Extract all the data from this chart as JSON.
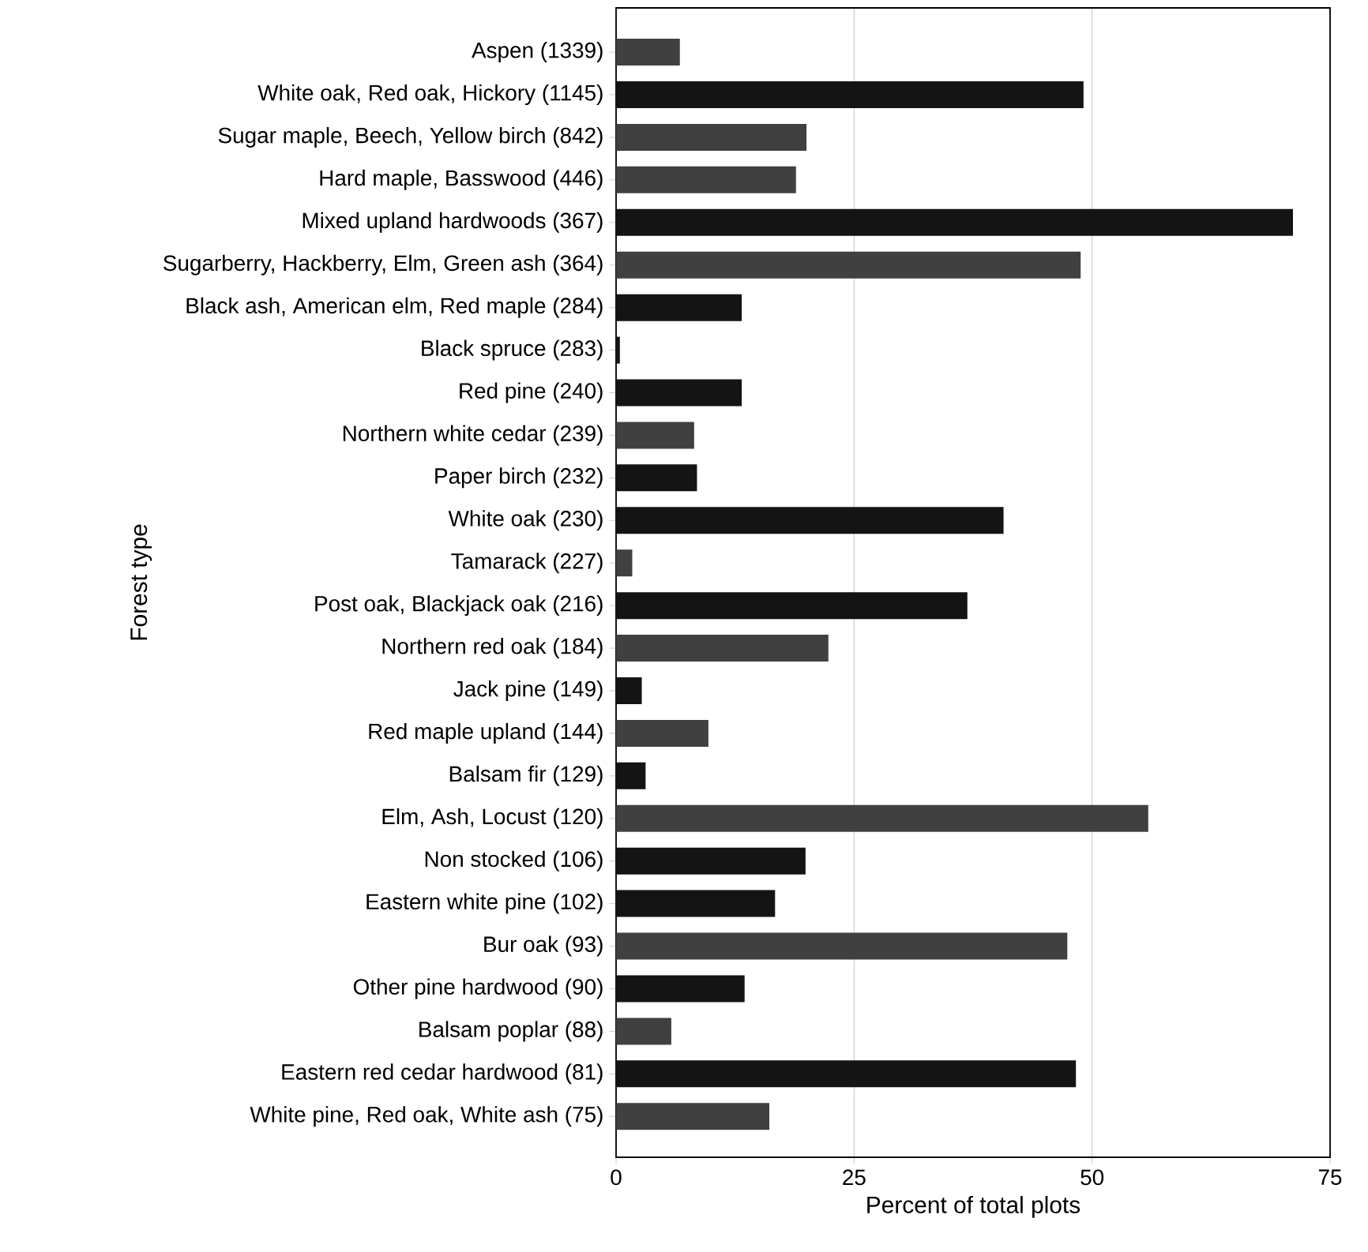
{
  "chart_data": {
    "type": "bar",
    "orientation": "horizontal",
    "xlabel": "Percent of total plots",
    "ylabel": "Forest type",
    "categories": [
      "Aspen (1339)",
      "White oak, Red oak, Hickory (1145)",
      "Sugar maple, Beech, Yellow birch (842)",
      "Hard maple, Basswood (446)",
      "Mixed upland hardwoods (367)",
      "Sugarberry, Hackberry, Elm, Green ash (364)",
      "Black ash, American elm, Red maple (284)",
      "Black spruce (283)",
      "Red pine (240)",
      "Northern white cedar (239)",
      "Paper birch (232)",
      "White oak (230)",
      "Tamarack (227)",
      "Post oak, Blackjack oak (216)",
      "Northern red oak (184)",
      "Jack pine (149)",
      "Red maple upland (144)",
      "Balsam fir (129)",
      "Elm, Ash, Locust (120)",
      "Non stocked (106)",
      "Eastern white pine (102)",
      "Bur oak (93)",
      "Other pine hardwood (90)",
      "Balsam poplar (88)",
      "Eastern red cedar hardwood (81)",
      "White pine, Red oak, White ash (75)"
    ],
    "values": [
      6.7,
      49.1,
      20.0,
      18.9,
      71.1,
      48.8,
      13.2,
      0.4,
      13.2,
      8.2,
      8.5,
      40.7,
      1.7,
      36.9,
      22.3,
      2.7,
      9.7,
      3.1,
      55.9,
      19.9,
      16.7,
      47.4,
      13.5,
      5.8,
      48.3,
      16.1
    ],
    "colors": [
      "#404040",
      "#141414",
      "#404040",
      "#404040",
      "#141414",
      "#404040",
      "#141414",
      "#141414",
      "#141414",
      "#404040",
      "#141414",
      "#141414",
      "#404040",
      "#141414",
      "#404040",
      "#141414",
      "#404040",
      "#141414",
      "#404040",
      "#141414",
      "#141414",
      "#404040",
      "#141414",
      "#404040",
      "#141414",
      "#404040"
    ],
    "xlim": [
      0,
      75
    ],
    "xticks": [
      0,
      25,
      50,
      75
    ],
    "grid": "x"
  }
}
